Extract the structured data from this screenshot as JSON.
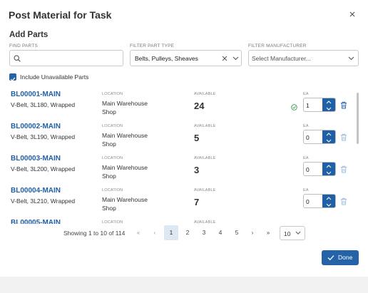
{
  "dialog": {
    "title": "Post Material for Task"
  },
  "section": {
    "title": "Add Parts"
  },
  "filters": {
    "find_parts_label": "FIND PARTS",
    "find_parts_value": "",
    "part_type_label": "FILTER PART TYPE",
    "part_type_value": "Belts, Pulleys, Sheaves",
    "manufacturer_label": "FILTER MANUFACTURER",
    "manufacturer_placeholder": "Select Manufacturer..."
  },
  "include_unavailable": {
    "label": "Include Unavailable Parts",
    "checked": true
  },
  "column_labels": {
    "location": "LOCATION",
    "available": "AVAILABLE",
    "ea": "EA"
  },
  "parts": [
    {
      "id": "BL00001-MAIN",
      "desc": "V-Belt, 3L180, Wrapped",
      "location_line1": "Main Warehouse",
      "location_line2": "Shop",
      "available": "24",
      "qty": "1",
      "added": true
    },
    {
      "id": "BL00002-MAIN",
      "desc": "V-Belt, 3L190, Wrapped",
      "location_line1": "Main Warehouse",
      "location_line2": "Shop",
      "available": "5",
      "qty": "0",
      "added": false
    },
    {
      "id": "BL00003-MAIN",
      "desc": "V-Belt, 3L200, Wrapped",
      "location_line1": "Main Warehouse",
      "location_line2": "Shop",
      "available": "3",
      "qty": "0",
      "added": false
    },
    {
      "id": "BL00004-MAIN",
      "desc": "V-Belt, 3L210, Wrapped",
      "location_line1": "Main Warehouse",
      "location_line2": "Shop",
      "available": "7",
      "qty": "0",
      "added": false
    },
    {
      "id": "BL00005-MAIN",
      "desc": "",
      "location_line1": "",
      "location_line2": "",
      "available": "",
      "qty": "",
      "added": false
    }
  ],
  "pagination": {
    "info": "Showing 1 to 10 of 114",
    "pages": [
      "1",
      "2",
      "3",
      "4",
      "5"
    ],
    "current": "1",
    "page_size": "10"
  },
  "done_button": {
    "label": "Done"
  },
  "colors": {
    "primary": "#2563a8",
    "link": "#1f5fa5",
    "success": "#2e9e4f",
    "active_page": "#dde8f3"
  }
}
